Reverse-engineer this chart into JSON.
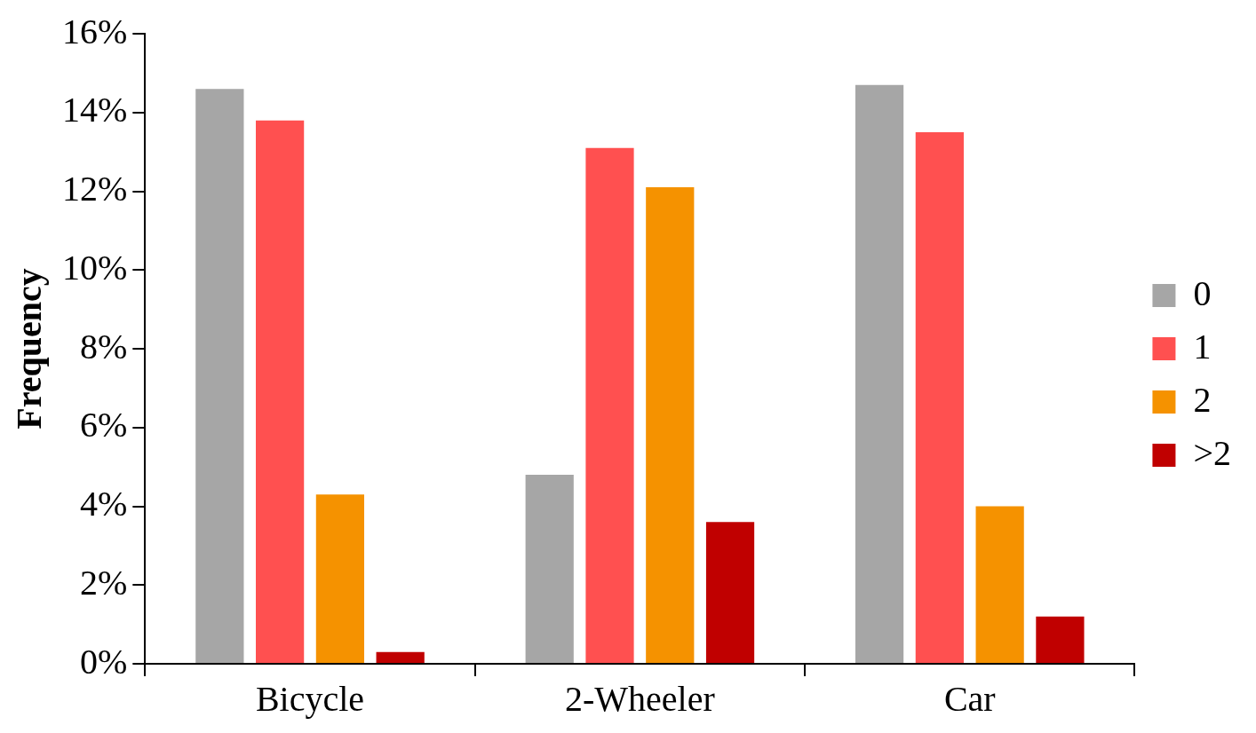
{
  "chart_data": {
    "type": "bar",
    "ylabel": "Frequency",
    "categories": [
      "Bicycle",
      "2-Wheeler",
      "Car"
    ],
    "series": [
      {
        "name": "0",
        "color": "#a6a6a6",
        "values": [
          14.6,
          4.8,
          14.7
        ]
      },
      {
        "name": "1",
        "color": "#ff5050",
        "values": [
          13.8,
          13.1,
          13.5
        ]
      },
      {
        "name": "2",
        "color": "#f59200",
        "values": [
          4.3,
          12.1,
          4.0
        ]
      },
      {
        "name": ">2",
        "color": "#c00000",
        "values": [
          0.3,
          3.6,
          1.2
        ]
      }
    ],
    "ylim": [
      0,
      16
    ],
    "yticks": [
      {
        "value": 0,
        "label": "0%"
      },
      {
        "value": 2,
        "label": "2%"
      },
      {
        "value": 4,
        "label": "4%"
      },
      {
        "value": 6,
        "label": "6%"
      },
      {
        "value": 8,
        "label": "8%"
      },
      {
        "value": 10,
        "label": "10%"
      },
      {
        "value": 12,
        "label": "12%"
      },
      {
        "value": 14,
        "label": "14%"
      },
      {
        "value": 16,
        "label": "16%"
      }
    ],
    "grid": false,
    "legend": "right"
  }
}
